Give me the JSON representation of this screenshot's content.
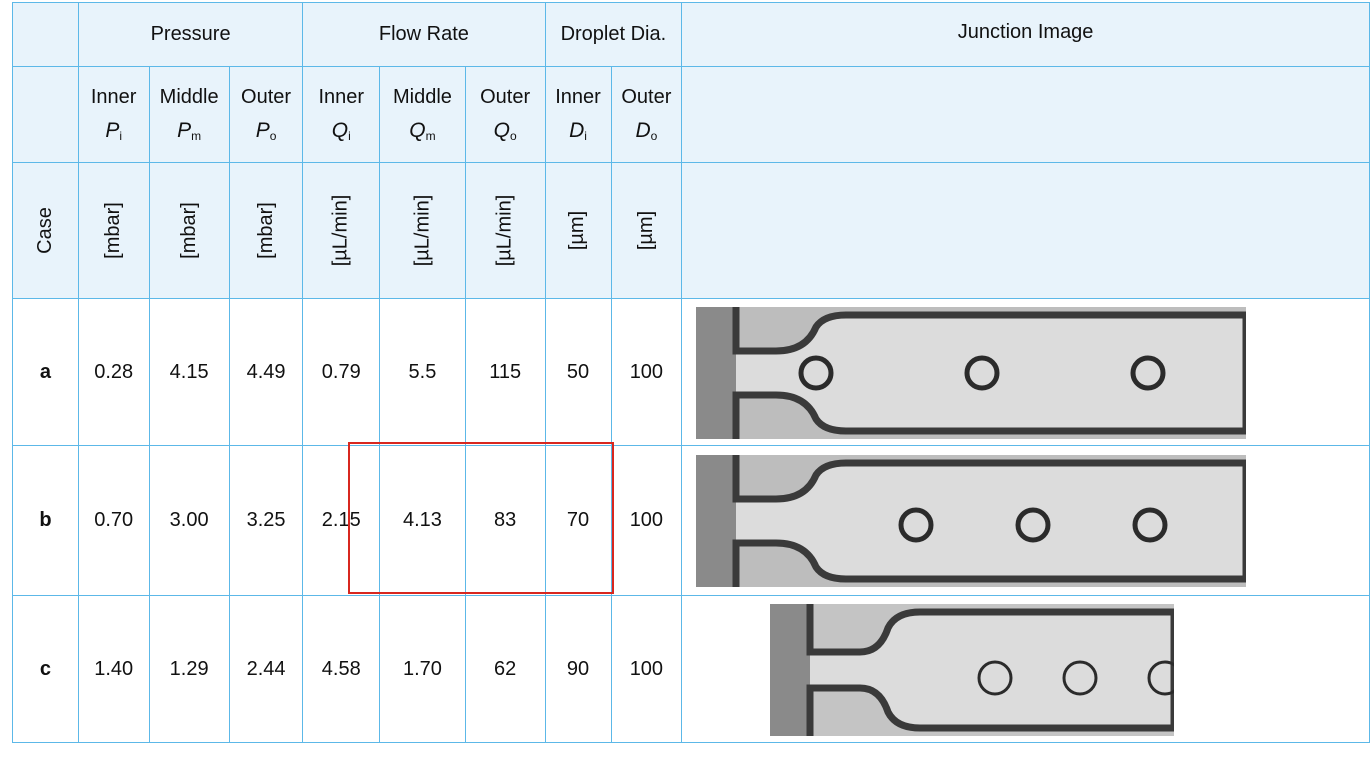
{
  "headers": {
    "pressure": "Pressure",
    "flow_rate": "Flow Rate",
    "droplet_dia": "Droplet Dia.",
    "junction_image": "Junction Image",
    "case": "Case"
  },
  "columns": [
    {
      "label": "Inner",
      "sym": "P",
      "sub": "i",
      "unit": "[mbar]"
    },
    {
      "label": "Middle",
      "sym": "P",
      "sub": "m",
      "unit": "[mbar]"
    },
    {
      "label": "Outer",
      "sym": "P",
      "sub": "o",
      "unit": "[mbar]"
    },
    {
      "label": "Inner",
      "sym": "Q",
      "sub": "i",
      "unit": "[µL/min]"
    },
    {
      "label": "Middle",
      "sym": "Q",
      "sub": "m",
      "unit": "[µL/min]"
    },
    {
      "label": "Outer",
      "sym": "Q",
      "sub": "o",
      "unit": "[µL/min]"
    },
    {
      "label": "Inner",
      "sym": "D",
      "sub": "i",
      "unit": "[µm]"
    },
    {
      "label": "Outer",
      "sym": "D",
      "sub": "o",
      "unit": "[µm]"
    }
  ],
  "rows": [
    {
      "case": "a",
      "values": [
        "0.28",
        "4.15",
        "4.49",
        "0.79",
        "5.5",
        "115",
        "50",
        "100"
      ]
    },
    {
      "case": "b",
      "values": [
        "0.70",
        "3.00",
        "3.25",
        "2.15",
        "4.13",
        "83",
        "70",
        "100"
      ]
    },
    {
      "case": "c",
      "values": [
        "1.40",
        "1.29",
        "2.44",
        "4.58",
        "1.70",
        "62",
        "90",
        "100"
      ]
    }
  ],
  "junction_images": [
    {
      "droplets": 3
    },
    {
      "droplets": 3
    },
    {
      "droplets": 3
    }
  ],
  "colors": {
    "border": "#5cb8e8",
    "header_bg": "#e8f3fb",
    "highlight": "#d8271f"
  }
}
